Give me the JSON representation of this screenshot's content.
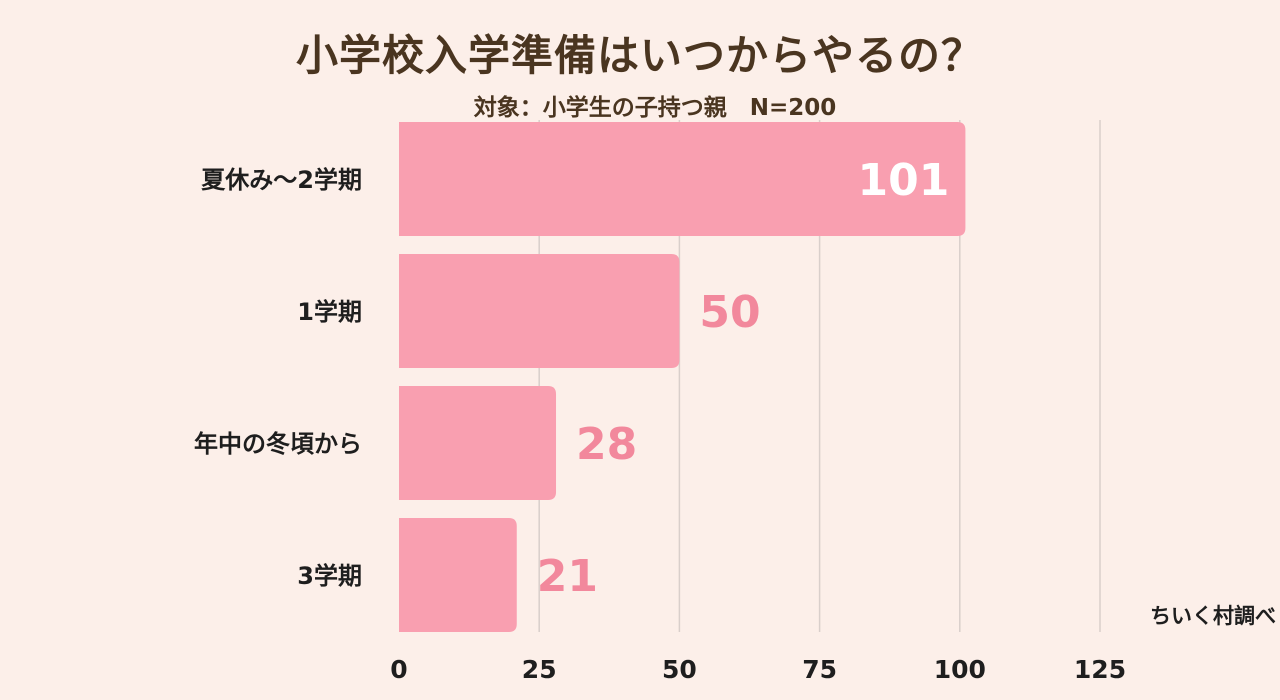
{
  "title": "小学校入学準備はいつからやるの？",
  "subtitle": "対象：小学生の子持つ親　N=200",
  "source": "ちいく村調べ",
  "colors": {
    "background": "#fcefe9",
    "bar": "#f99fb0",
    "label_outside": "#f2889c",
    "label_inside": "#ffffff",
    "grid": "#d9cfcb",
    "title": "#4a3520"
  },
  "chart_data": {
    "type": "bar",
    "orientation": "horizontal",
    "categories": [
      "夏休み〜2学期",
      "1学期",
      "年中の冬頃から",
      "3学期"
    ],
    "values": [
      101,
      50,
      28,
      21
    ],
    "xlim": [
      0,
      125
    ],
    "xticks": [
      0,
      25,
      50,
      75,
      100,
      125
    ],
    "grid": true
  }
}
